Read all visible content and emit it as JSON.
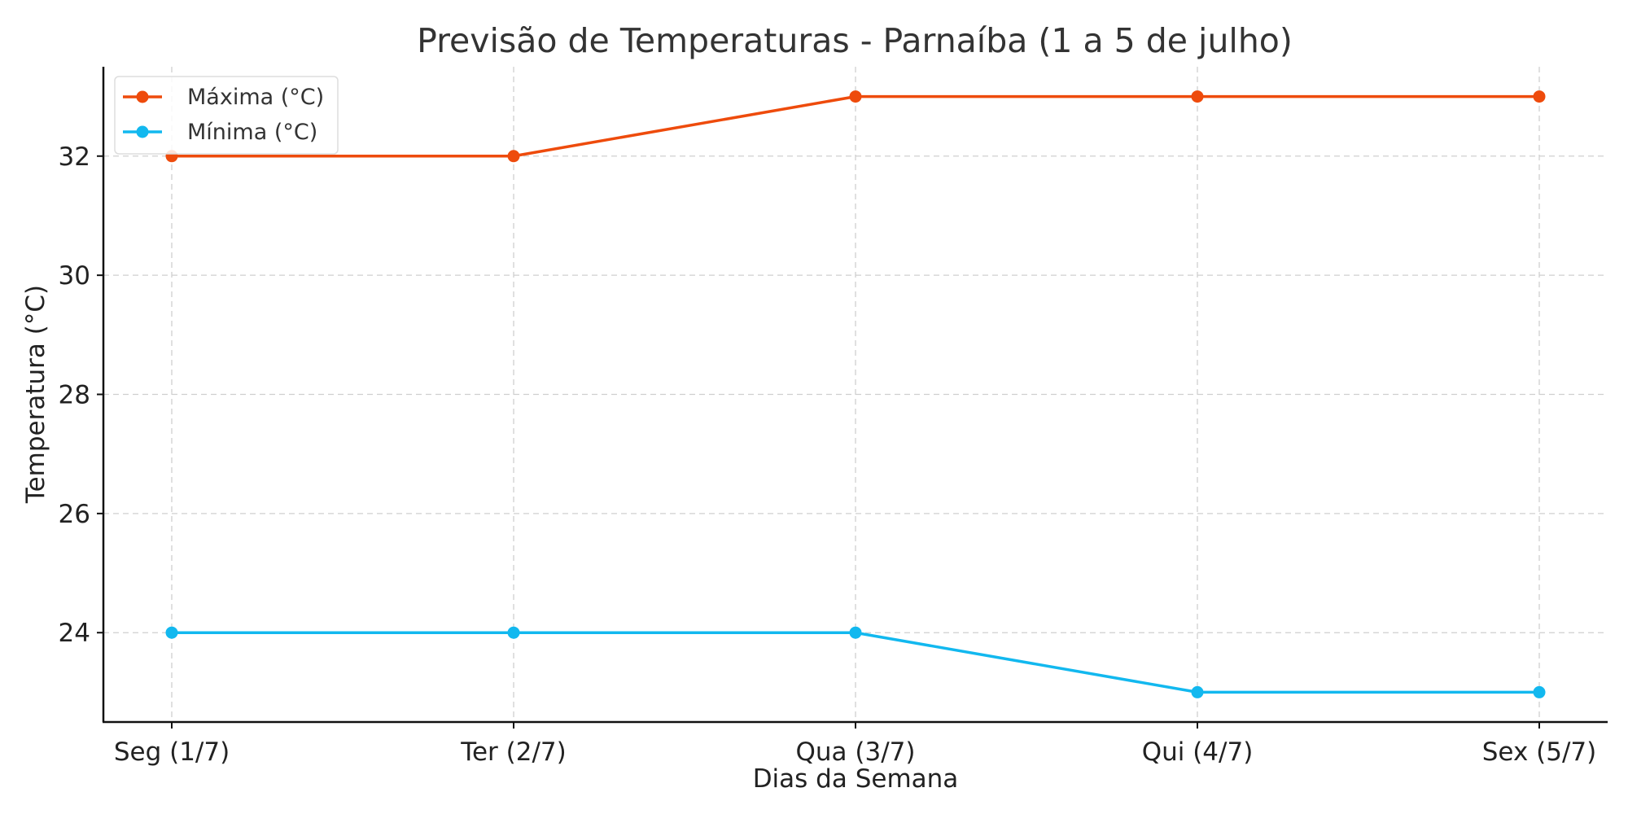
{
  "chart_data": {
    "type": "line",
    "title": "Previsão de Temperaturas - Parnaíba (1 a 5 de julho)",
    "xlabel": "Dias da Semana",
    "ylabel": "Temperatura (°C)",
    "categories": [
      "Seg (1/7)",
      "Ter (2/7)",
      "Qua (3/7)",
      "Qui (4/7)",
      "Sex (5/7)"
    ],
    "ylim": [
      22.5,
      33.5
    ],
    "yticks": [
      24,
      26,
      28,
      30,
      32
    ],
    "grid": true,
    "legend_position": "top-left",
    "series": [
      {
        "name": "Máxima (°C)",
        "color": "#ee4b0c",
        "marker": "circle",
        "values": [
          32,
          32,
          33,
          33,
          33
        ]
      },
      {
        "name": "Mínima (°C)",
        "color": "#12b8ef",
        "marker": "circle",
        "values": [
          24,
          24,
          24,
          23,
          23
        ]
      }
    ]
  }
}
